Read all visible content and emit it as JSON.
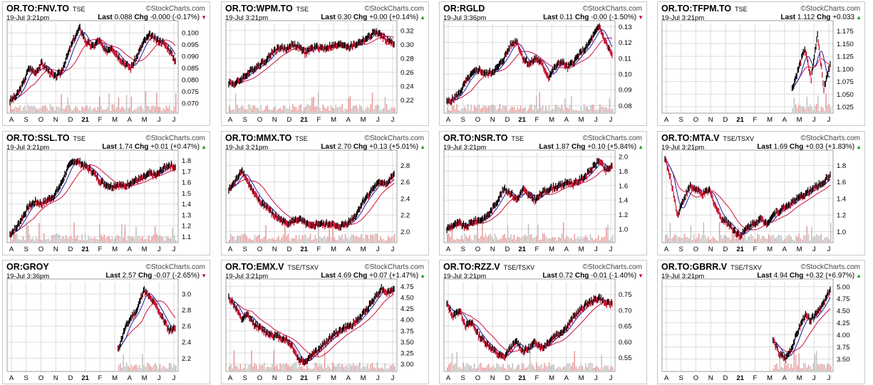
{
  "brand": "StockCharts.com",
  "copyright_symbol": "©",
  "labels": {
    "last": "Last",
    "chg": "Chg"
  },
  "colors": {
    "up": "#1a9c2a",
    "down": "#c8102e",
    "price": "#000000",
    "ma_fast": "#1c1ca8",
    "ma_slow": "#d01040",
    "volume": "#c0c0c0",
    "volume_red": "#e89898",
    "grid": "#dcdcdc"
  },
  "panels": [
    {
      "symbol": "OR.TO:FNV.TO",
      "exchange": "TSE",
      "datetime": "19-Jul 3:21pm",
      "last": "0.088",
      "chg": "-0.000 (-0.17%)",
      "dir": "down"
    },
    {
      "symbol": "OR.TO:WPM.TO",
      "exchange": "TSE",
      "datetime": "19-Jul 3:21pm",
      "last": "0.30",
      "chg": "+0.00 (+0.14%)",
      "dir": "up"
    },
    {
      "symbol": "OR:RGLD",
      "exchange": "",
      "datetime": "19-Jul 3:36pm",
      "last": "0.11",
      "chg": "-0.00 (-1.50%)",
      "dir": "down"
    },
    {
      "symbol": "OR.TO:TFPM.TO",
      "exchange": "TSE",
      "datetime": "19-Jul 3:21pm",
      "last": "1.112",
      "chg": "+0.033",
      "dir": "up"
    },
    {
      "symbol": "OR.TO:SSL.TO",
      "exchange": "TSE",
      "datetime": "19-Jul 3:21pm",
      "last": "1.74",
      "chg": "+0.01 (+0.47%)",
      "dir": "up"
    },
    {
      "symbol": "OR.TO:MMX.TO",
      "exchange": "TSE",
      "datetime": "19-Jul 3:21pm",
      "last": "2.70",
      "chg": "+0.13 (+5.01%)",
      "dir": "up"
    },
    {
      "symbol": "OR.TO:NSR.TO",
      "exchange": "TSE",
      "datetime": "19-Jul 3:21pm",
      "last": "1.87",
      "chg": "+0.10 (+5.84%)",
      "dir": "up"
    },
    {
      "symbol": "OR.TO:MTA.V",
      "exchange": "TSE/TSXV",
      "datetime": "19-Jul 3:21pm",
      "last": "1.69",
      "chg": "+0.03 (+1.83%)",
      "dir": "up"
    },
    {
      "symbol": "OR:GROY",
      "exchange": "",
      "datetime": "19-Jul 3:36pm",
      "last": "2.57",
      "chg": "-0.07 (-2.65%)",
      "dir": "down"
    },
    {
      "symbol": "OR.TO:EMX.V",
      "exchange": "TSE/TSXV",
      "datetime": "19-Jul 3:21pm",
      "last": "4.69",
      "chg": "+0.07 (+1.47%)",
      "dir": "up"
    },
    {
      "symbol": "OR.TO:RZZ.V",
      "exchange": "TSE/TSXV",
      "datetime": "19-Jul 3:21pm",
      "last": "0.72",
      "chg": "-0.01 (-1.40%)",
      "dir": "down"
    },
    {
      "symbol": "OR.TO:GBRR.V",
      "exchange": "TSE/TSXV",
      "datetime": "19-Jul 3:21pm",
      "last": "4.94",
      "chg": "+0.32 (+6.97%)",
      "dir": "up"
    }
  ],
  "chart_data": [
    {
      "type": "line",
      "title": "OR.TO:FNV.TO",
      "x_ticks": [
        "A",
        "S",
        "O",
        "N",
        "D",
        "21",
        "F",
        "M",
        "A",
        "M",
        "J",
        "J"
      ],
      "start": 0,
      "ylim": [
        0.067,
        0.104
      ],
      "y_ticks": [
        "0.070",
        "0.075",
        "0.080",
        "0.085",
        "0.090",
        "0.095",
        "0.100"
      ],
      "y_tick_values": [
        0.07,
        0.075,
        0.08,
        0.085,
        0.09,
        0.095,
        0.1
      ],
      "series": [
        {
          "values": [
            0.071,
            0.073,
            0.078,
            0.085,
            0.083,
            0.087,
            0.084,
            0.081,
            0.083,
            0.09,
            0.097,
            0.102,
            0.096,
            0.094,
            0.097,
            0.092,
            0.094,
            0.09,
            0.087,
            0.085,
            0.09,
            0.096,
            0.099,
            0.097,
            0.096,
            0.093,
            0.088
          ]
        }
      ]
    },
    {
      "type": "line",
      "title": "OR.TO:WPM.TO",
      "x_ticks": [
        "A",
        "S",
        "O",
        "N",
        "D",
        "21",
        "F",
        "M",
        "A",
        "M",
        "J",
        "J"
      ],
      "start": 0,
      "ylim": [
        0.205,
        0.33
      ],
      "y_ticks": [
        "0.22",
        "0.24",
        "0.26",
        "0.28",
        "0.30",
        "0.32"
      ],
      "y_tick_values": [
        0.22,
        0.24,
        0.26,
        0.28,
        0.3,
        0.32
      ],
      "series": [
        {
          "values": [
            0.245,
            0.243,
            0.25,
            0.258,
            0.265,
            0.272,
            0.278,
            0.29,
            0.295,
            0.293,
            0.3,
            0.296,
            0.287,
            0.294,
            0.296,
            0.294,
            0.297,
            0.298,
            0.3,
            0.296,
            0.3,
            0.305,
            0.31,
            0.318,
            0.312,
            0.305,
            0.3
          ]
        }
      ]
    },
    {
      "type": "line",
      "title": "OR:RGLD",
      "x_ticks": [
        "A",
        "S",
        "O",
        "N",
        "D",
        "21",
        "F",
        "M",
        "A",
        "M",
        "J",
        "J"
      ],
      "start": 0,
      "ylim": [
        0.077,
        0.132
      ],
      "y_ticks": [
        "0.08",
        "0.09",
        "0.10",
        "0.11",
        "0.12",
        "0.13"
      ],
      "y_tick_values": [
        0.08,
        0.09,
        0.1,
        0.11,
        0.12,
        0.13
      ],
      "series": [
        {
          "values": [
            0.082,
            0.084,
            0.088,
            0.095,
            0.1,
            0.103,
            0.1,
            0.101,
            0.104,
            0.11,
            0.118,
            0.121,
            0.11,
            0.106,
            0.11,
            0.106,
            0.098,
            0.104,
            0.108,
            0.104,
            0.108,
            0.113,
            0.117,
            0.124,
            0.13,
            0.12,
            0.112
          ]
        }
      ]
    },
    {
      "type": "line",
      "title": "OR.TO:TFPM.TO",
      "x_ticks": [
        "A",
        "S",
        "O",
        "N",
        "D",
        "21",
        "F",
        "M",
        "A",
        "M",
        "J",
        "J"
      ],
      "start": 20,
      "ylim": [
        1.018,
        1.19
      ],
      "y_ticks": [
        "1.025",
        "1.050",
        "1.075",
        "1.100",
        "1.125",
        "1.150",
        "1.175"
      ],
      "y_tick_values": [
        1.025,
        1.05,
        1.075,
        1.1,
        1.125,
        1.15,
        1.175
      ],
      "series": [
        {
          "values": [
            1.06,
            1.1,
            1.14,
            1.08,
            1.17,
            1.06,
            1.11
          ]
        }
      ]
    },
    {
      "type": "line",
      "title": "OR.TO:SSL.TO",
      "x_ticks": [
        "A",
        "S",
        "O",
        "N",
        "D",
        "21",
        "F",
        "M",
        "A",
        "M",
        "J",
        "J"
      ],
      "start": 0,
      "ylim": [
        1.07,
        1.87
      ],
      "y_ticks": [
        "1.1",
        "1.2",
        "1.3",
        "1.4",
        "1.5",
        "1.6",
        "1.7",
        "1.8"
      ],
      "y_tick_values": [
        1.1,
        1.2,
        1.3,
        1.4,
        1.5,
        1.6,
        1.7,
        1.8
      ],
      "series": [
        {
          "values": [
            1.12,
            1.18,
            1.28,
            1.38,
            1.42,
            1.4,
            1.44,
            1.48,
            1.58,
            1.72,
            1.8,
            1.78,
            1.74,
            1.7,
            1.62,
            1.58,
            1.56,
            1.58,
            1.56,
            1.6,
            1.62,
            1.64,
            1.68,
            1.66,
            1.72,
            1.76,
            1.74
          ]
        }
      ]
    },
    {
      "type": "line",
      "title": "OR.TO:MMX.TO",
      "x_ticks": [
        "A",
        "S",
        "O",
        "N",
        "D",
        "21",
        "F",
        "M",
        "A",
        "M",
        "J",
        "J"
      ],
      "start": 0,
      "ylim": [
        1.9,
        2.95
      ],
      "y_ticks": [
        "2.0",
        "2.2",
        "2.4",
        "2.6",
        "2.8"
      ],
      "y_tick_values": [
        2.0,
        2.2,
        2.4,
        2.6,
        2.8
      ],
      "series": [
        {
          "values": [
            2.5,
            2.6,
            2.75,
            2.6,
            2.45,
            2.35,
            2.3,
            2.2,
            2.15,
            2.1,
            2.12,
            2.15,
            2.1,
            2.05,
            2.1,
            2.08,
            2.1,
            2.05,
            2.08,
            2.12,
            2.2,
            2.35,
            2.45,
            2.55,
            2.6,
            2.58,
            2.7
          ]
        }
      ]
    },
    {
      "type": "line",
      "title": "OR.TO:NSR.TO",
      "x_ticks": [
        "A",
        "S",
        "O",
        "N",
        "D",
        "21",
        "F",
        "M",
        "A",
        "M",
        "J",
        "J"
      ],
      "start": 0,
      "ylim": [
        0.85,
        2.05
      ],
      "y_ticks": [
        "1.0",
        "1.2",
        "1.4",
        "1.6",
        "1.8",
        "2.0"
      ],
      "y_tick_values": [
        1.0,
        1.2,
        1.4,
        1.6,
        1.8,
        2.0
      ],
      "series": [
        {
          "values": [
            1.0,
            1.05,
            1.08,
            1.02,
            1.1,
            1.12,
            1.15,
            1.25,
            1.4,
            1.55,
            1.5,
            1.4,
            1.55,
            1.45,
            1.4,
            1.5,
            1.55,
            1.58,
            1.6,
            1.65,
            1.62,
            1.68,
            1.75,
            1.85,
            1.95,
            1.8,
            1.87
          ]
        }
      ]
    },
    {
      "type": "line",
      "title": "OR.TO:MTA.V",
      "x_ticks": [
        "A",
        "S",
        "O",
        "N",
        "D",
        "21",
        "F",
        "M",
        "A",
        "M",
        "J",
        "J"
      ],
      "start": 0,
      "ylim": [
        0.9,
        1.95
      ],
      "y_ticks": [
        "1.0",
        "1.2",
        "1.4",
        "1.6",
        "1.8"
      ],
      "y_tick_values": [
        1.0,
        1.2,
        1.4,
        1.6,
        1.8
      ],
      "series": [
        {
          "values": [
            1.9,
            1.6,
            1.2,
            1.4,
            1.55,
            1.5,
            1.45,
            1.5,
            1.3,
            1.15,
            1.1,
            1.0,
            0.95,
            1.05,
            1.1,
            1.15,
            1.1,
            1.2,
            1.25,
            1.3,
            1.35,
            1.4,
            1.45,
            1.5,
            1.55,
            1.6,
            1.69
          ]
        }
      ]
    },
    {
      "type": "line",
      "title": "OR:GROY",
      "x_ticks": [
        "A",
        "S",
        "O",
        "N",
        "D",
        "21",
        "F",
        "M",
        "A",
        "M",
        "J",
        "J"
      ],
      "start": 17,
      "ylim": [
        2.07,
        3.15
      ],
      "y_ticks": [
        "2.2",
        "2.4",
        "2.6",
        "2.8",
        "3.0"
      ],
      "y_tick_values": [
        2.2,
        2.4,
        2.6,
        2.8,
        3.0
      ],
      "series": [
        {
          "values": [
            2.3,
            2.55,
            2.7,
            2.8,
            3.05,
            2.95,
            2.85,
            2.7,
            2.55,
            2.57
          ]
        }
      ]
    },
    {
      "type": "line",
      "title": "OR.TO:EMX.V",
      "x_ticks": [
        "A",
        "S",
        "O",
        "N",
        "D",
        "21",
        "F",
        "M",
        "A",
        "M",
        "J",
        "J"
      ],
      "start": 0,
      "ylim": [
        2.9,
        4.85
      ],
      "y_ticks": [
        "3.00",
        "3.25",
        "3.50",
        "3.75",
        "4.00",
        "4.25",
        "4.50",
        "4.75"
      ],
      "y_tick_values": [
        3.0,
        3.25,
        3.5,
        3.75,
        4.0,
        4.25,
        4.5,
        4.75
      ],
      "series": [
        {
          "values": [
            4.5,
            4.3,
            4.0,
            4.1,
            3.9,
            3.8,
            3.7,
            3.65,
            3.6,
            3.55,
            3.4,
            3.1,
            3.05,
            3.2,
            3.3,
            3.45,
            3.6,
            3.7,
            3.8,
            3.85,
            3.95,
            4.1,
            4.3,
            4.5,
            4.7,
            4.6,
            4.69
          ]
        }
      ]
    },
    {
      "type": "line",
      "title": "OR.TO:RZZ.V",
      "x_ticks": [
        "A",
        "S",
        "O",
        "N",
        "D",
        "21",
        "F",
        "M",
        "A",
        "M",
        "J",
        "J"
      ],
      "start": 0,
      "ylim": [
        0.515,
        0.79
      ],
      "y_ticks": [
        "0.55",
        "0.60",
        "0.65",
        "0.70",
        "0.75"
      ],
      "y_tick_values": [
        0.55,
        0.6,
        0.65,
        0.7,
        0.75
      ],
      "series": [
        {
          "values": [
            0.72,
            0.68,
            0.7,
            0.65,
            0.66,
            0.62,
            0.6,
            0.58,
            0.56,
            0.55,
            0.58,
            0.6,
            0.57,
            0.58,
            0.6,
            0.58,
            0.6,
            0.62,
            0.63,
            0.65,
            0.68,
            0.7,
            0.72,
            0.73,
            0.74,
            0.72,
            0.72
          ]
        }
      ]
    },
    {
      "type": "line",
      "title": "OR.TO:GBRR.V",
      "x_ticks": [
        "A",
        "S",
        "O",
        "N",
        "D",
        "21",
        "F",
        "M",
        "A",
        "M",
        "J",
        "J"
      ],
      "start": 17,
      "ylim": [
        3.3,
        5.1
      ],
      "y_ticks": [
        "3.50",
        "3.75",
        "4.00",
        "4.25",
        "4.50",
        "4.75",
        "5.00"
      ],
      "y_tick_values": [
        3.5,
        3.75,
        4.0,
        4.25,
        4.5,
        4.75,
        5.0
      ],
      "series": [
        {
          "values": [
            3.9,
            3.6,
            3.5,
            3.75,
            4.1,
            4.4,
            4.3,
            4.5,
            4.65,
            4.94
          ]
        }
      ]
    }
  ]
}
